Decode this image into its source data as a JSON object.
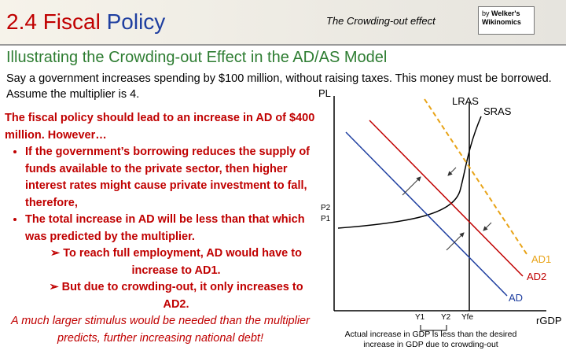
{
  "header": {
    "title_part1": "2.4 Fiscal",
    "title_part2": "Policy",
    "topic": "The Crowding-out effect",
    "logo_by": "by",
    "logo_name1": "Welker's",
    "logo_name2": "Wikinomics"
  },
  "subtitle": "Illustrating the Crowding-out Effect in the AD/AS Model",
  "intro": "Say a government increases spending by $100 million, without raising taxes. This money must be borrowed. Assume the multiplier is 4.",
  "body": {
    "lead": "The fiscal policy should lead to an increase in AD of $400 million. However…",
    "bullets": [
      {
        "text": "If the government’s borrowing reduces the supply of funds available to the private sector, then higher interest rates might cause private investment to fall, therefore,",
        "subs": []
      },
      {
        "text": "The total increase in AD will be less than that which was predicted by the multiplier.",
        "subs": [
          "To reach full employment, AD would have to increase to AD1.",
          "But due to crowding-out, it only increases to AD2."
        ]
      }
    ],
    "conclusion": "A much larger stimulus would be needed than the multiplier predicts, further increasing national debt!"
  },
  "diagram": {
    "y_axis": "PL",
    "x_axis": "rGDP",
    "lras": "LRAS",
    "sras": "SRAS",
    "ad": "AD",
    "ad1": "AD1",
    "ad2": "AD2",
    "p2": "P2",
    "p1": "P1",
    "y1": "Y1",
    "y2": "Y2",
    "yfe": "Yfe",
    "caption_line1": "Actual increase in GDP is less than the desired",
    "caption_line2": "increase in GDP due to crowding-out"
  }
}
